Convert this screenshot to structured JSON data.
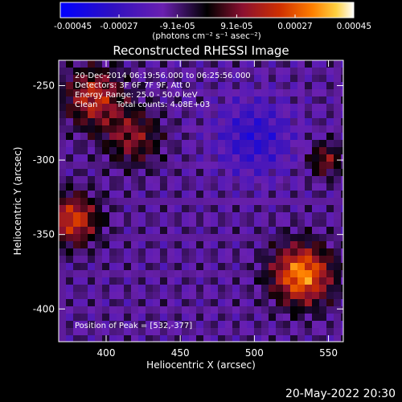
{
  "chart_data": {
    "type": "heatmap",
    "title": "Reconstructed RHESSI Image",
    "xlabel": "Heliocentric X (arcsec)",
    "ylabel": "Heliocentric Y (arcsec)",
    "xlim": [
      368,
      560
    ],
    "ylim": [
      -422,
      -233
    ],
    "x_ticks": [
      "400",
      "450",
      "500",
      "550"
    ],
    "x_tick_values": [
      400,
      450,
      500,
      550
    ],
    "y_ticks": [
      "-250",
      "-300",
      "-350",
      "-400"
    ],
    "y_tick_values": [
      -250,
      -300,
      -350,
      -400
    ],
    "colorbar": {
      "ticks": [
        "-0.00045",
        "-0.00027",
        "-9.1e-05",
        "9.1e-05",
        "0.00027",
        "0.00045"
      ],
      "tick_values": [
        -0.00045,
        -0.00027,
        -9.1e-05,
        9.1e-05,
        0.00027,
        0.00045
      ],
      "range": [
        -0.00045,
        0.00045
      ],
      "units": "(photons cm⁻² s⁻¹ asec⁻²)",
      "colors": [
        "#0000ff",
        "#3010c0",
        "#6a20b0",
        "#000000",
        "#8a1030",
        "#d03000",
        "#ff8000",
        "#ffd040",
        "#ffffff"
      ]
    },
    "annotations": {
      "time_range": "20-Dec-2014 06:19:56.000 to 06:25:56.000",
      "detectors": "Detectors: 3F 6F 7F 9F, Att 0",
      "energy": "Energy Range: 25.0 - 50.0 keV",
      "method": "Clean",
      "counts": "Total counts: 4.08E+03",
      "peak": "Position of Peak = [532,-377]"
    },
    "sources": [
      {
        "x": 392,
        "y": -258,
        "amplitude": 0.0003,
        "sigma": 14
      },
      {
        "x": 378,
        "y": -340,
        "amplitude": 0.00034,
        "sigma": 12
      },
      {
        "x": 418,
        "y": -285,
        "amplitude": 0.00022,
        "sigma": 13
      },
      {
        "x": 532,
        "y": -377,
        "amplitude": 0.00045,
        "sigma": 14
      },
      {
        "x": 548,
        "y": -300,
        "amplitude": 0.00022,
        "sigma": 8
      },
      {
        "x": 500,
        "y": -285,
        "amplitude": -0.00018,
        "sigma": 18
      }
    ]
  },
  "footer": {
    "timestamp": "20-May-2022 20:30"
  }
}
